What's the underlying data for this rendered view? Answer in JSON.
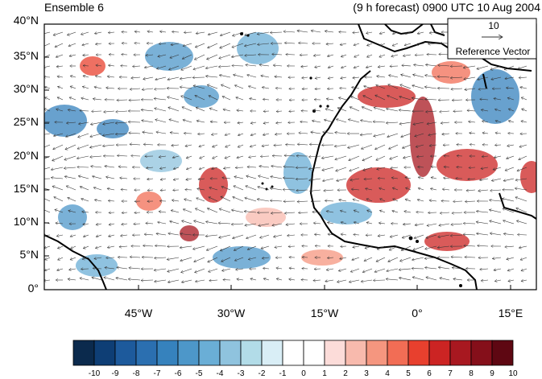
{
  "header": {
    "left": "Ensemble 6",
    "right": "(9 h forecast) 0900 UTC 10 Aug 2004"
  },
  "reference_vector": {
    "magnitude": "10",
    "label": "Reference Vector"
  },
  "axes": {
    "y_ticks": [
      "40°N",
      "35°N",
      "30°N",
      "25°N",
      "20°N",
      "15°N",
      "10°N",
      "5°N",
      "0°"
    ],
    "x_ticks": [
      "45°W",
      "30°W",
      "15°W",
      "0°",
      "15°E"
    ]
  },
  "colorbar": {
    "labels": [
      "-10",
      "-9",
      "-8",
      "-7",
      "-6",
      "-5",
      "-4",
      "-3",
      "-2",
      "-1",
      "0",
      "1",
      "2",
      "3",
      "4",
      "5",
      "6",
      "7",
      "8",
      "9",
      "10"
    ],
    "colors": [
      "#0b2a4d",
      "#0e3e75",
      "#1d5a9c",
      "#2b6fb0",
      "#3682bd",
      "#4d97c9",
      "#6aaed6",
      "#8fc3de",
      "#b2dce8",
      "#d9eef6",
      "#ffffff",
      "#ffffff",
      "#fcdcd9",
      "#f8baad",
      "#f5967f",
      "#f26d55",
      "#e8402e",
      "#cc2423",
      "#a81820",
      "#850f1a",
      "#5e0712"
    ],
    "accent": {
      "blue": "#3682bd",
      "red": "#e8402e"
    }
  }
}
